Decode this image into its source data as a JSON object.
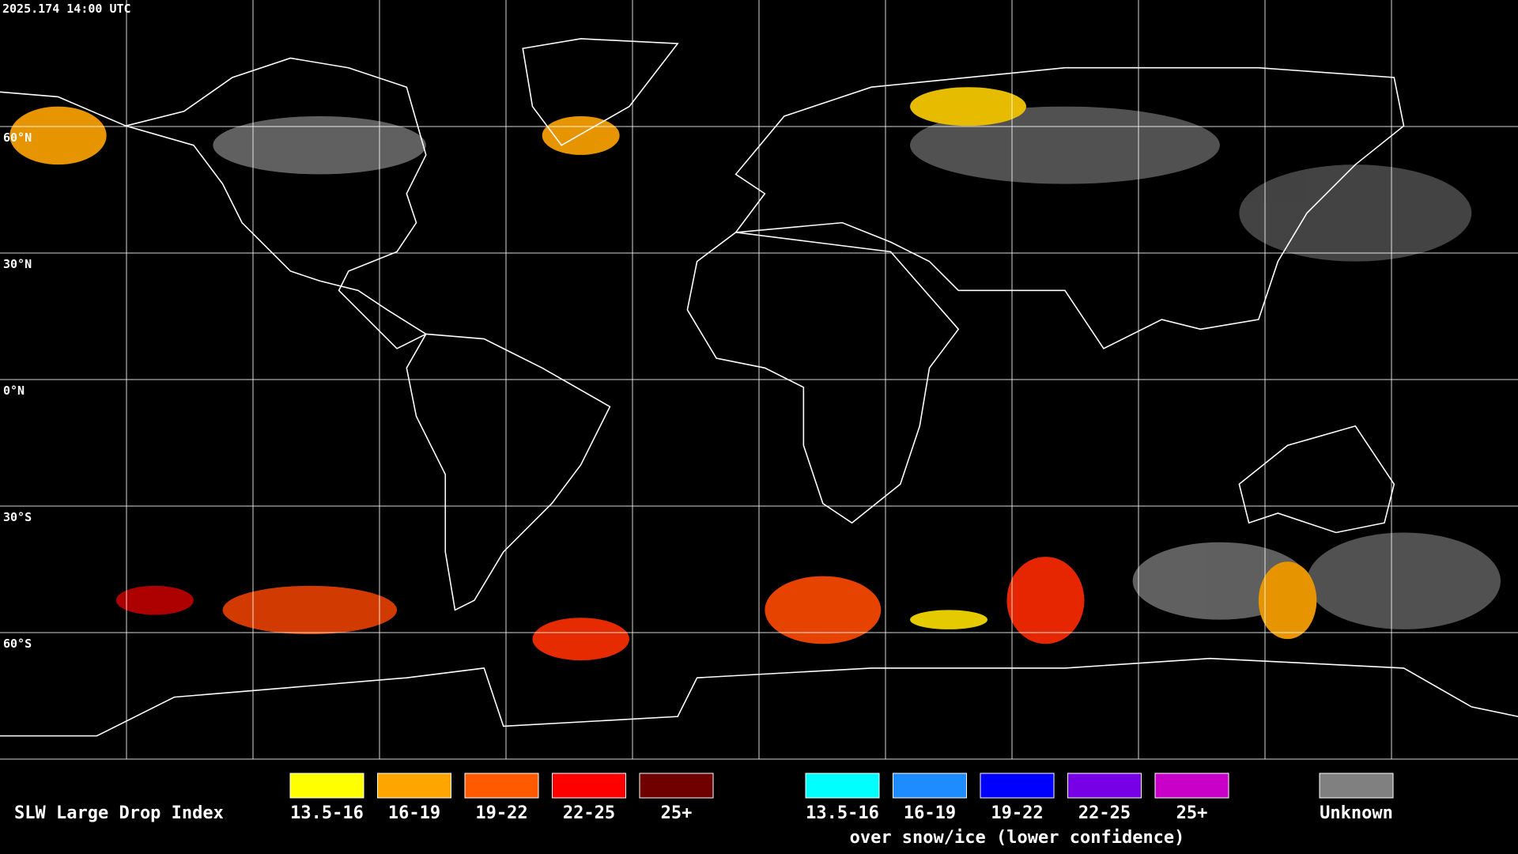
{
  "header": {
    "timestamp": "2025.174 14:00 UTC"
  },
  "map": {
    "latitude_labels": [
      "60°N",
      "30°N",
      "0°N",
      "30°S",
      "60°S"
    ]
  },
  "legend": {
    "title": "SLW Large Drop Index",
    "groups": [
      {
        "items": [
          {
            "label": "13.5-16",
            "color": "#ffff00"
          },
          {
            "label": "16-19",
            "color": "#ffa500"
          },
          {
            "label": "19-22",
            "color": "#ff5a00"
          },
          {
            "label": "22-25",
            "color": "#ff0000"
          },
          {
            "label": "25+",
            "color": "#6e0000"
          }
        ]
      },
      {
        "items": [
          {
            "label": "13.5-16",
            "color": "#00ffff"
          },
          {
            "label": "16-19",
            "color": "#1e8cff"
          },
          {
            "label": "19-22",
            "color": "#0000ff"
          },
          {
            "label": "22-25",
            "color": "#7800e6"
          },
          {
            "label": "25+",
            "color": "#c800c8"
          }
        ],
        "note": "over snow/ice (lower confidence)"
      },
      {
        "items": [
          {
            "label": "Unknown",
            "color": "#808080"
          }
        ]
      }
    ]
  }
}
